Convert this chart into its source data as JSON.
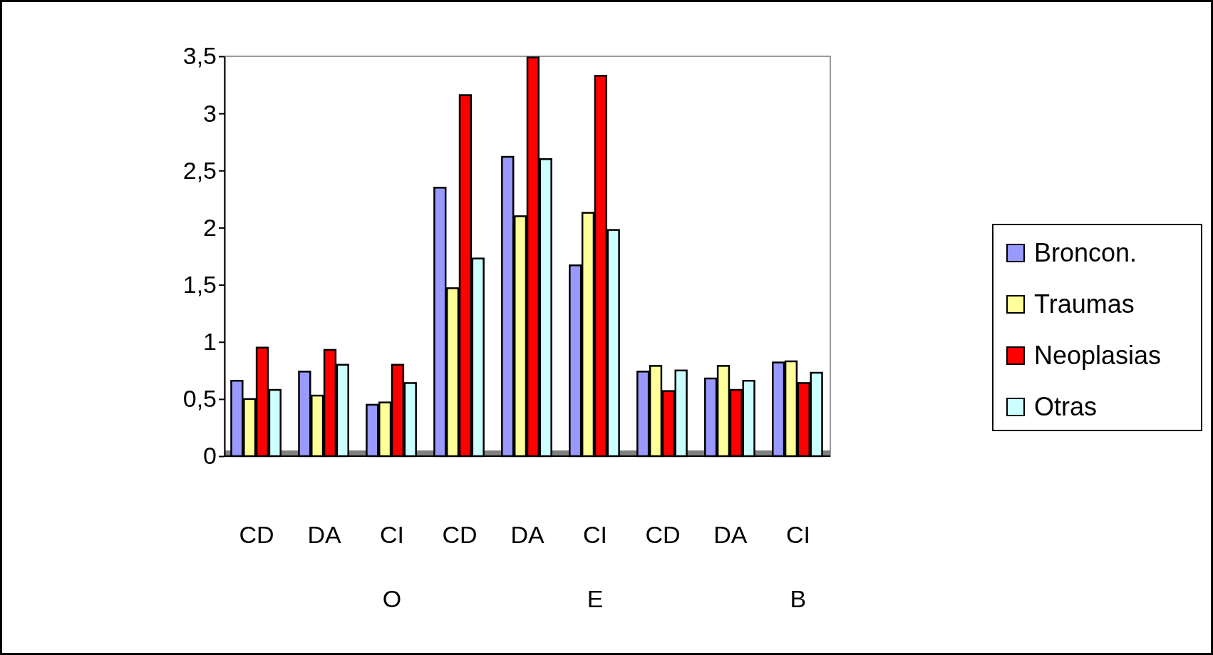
{
  "chart_data": {
    "type": "bar",
    "categories": [
      "CD",
      "DA",
      "CI",
      "CD",
      "DA",
      "CI",
      "CD",
      "DA",
      "CI"
    ],
    "series": [
      {
        "name": "Broncon.",
        "color": "#9999ff",
        "values": [
          0.66,
          0.74,
          0.45,
          2.35,
          2.62,
          1.67,
          0.74,
          0.68,
          0.82
        ]
      },
      {
        "name": "Traumas",
        "color": "#ffff99",
        "values": [
          0.5,
          0.53,
          0.47,
          1.47,
          2.1,
          2.13,
          0.79,
          0.79,
          0.83
        ]
      },
      {
        "name": "Neoplasias",
        "color": "#ff0000",
        "values": [
          0.95,
          0.93,
          0.8,
          3.16,
          3.49,
          3.33,
          0.57,
          0.58,
          0.64
        ]
      },
      {
        "name": "Otras",
        "color": "#ccffff",
        "values": [
          0.58,
          0.8,
          0.64,
          1.73,
          2.6,
          1.98,
          0.75,
          0.66,
          0.73
        ]
      }
    ],
    "annotations": [
      "O",
      "E",
      "B"
    ],
    "ylim": [
      0,
      3.5
    ],
    "yticks": [
      0,
      {
        "value": 0.5,
        "label": "0,5"
      },
      1,
      {
        "value": 1.5,
        "label": "1,5"
      },
      2,
      {
        "value": 2.5,
        "label": "2,5"
      },
      3,
      {
        "value": 3.5,
        "label": "3,5"
      }
    ],
    "legend": "right"
  }
}
